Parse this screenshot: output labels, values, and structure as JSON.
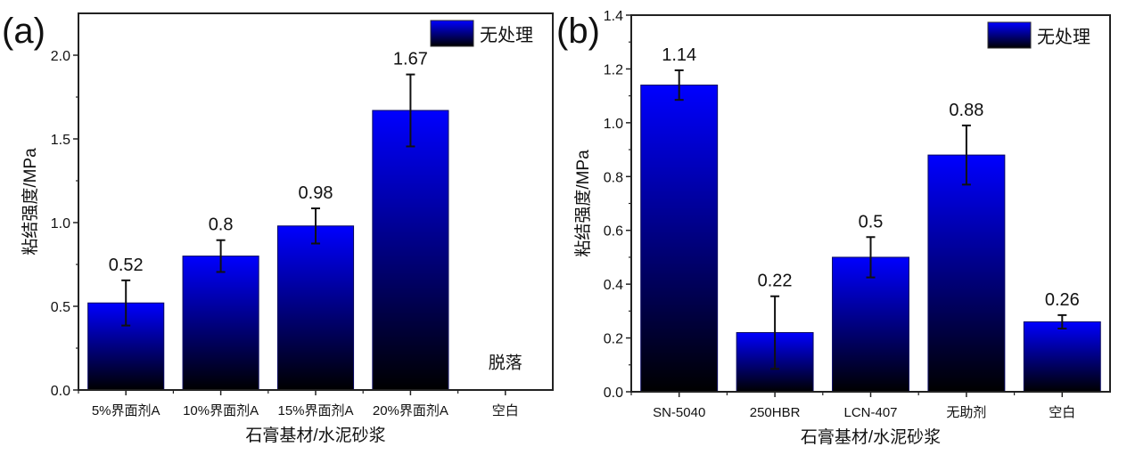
{
  "bar_gradient": {
    "top": "#0000ff",
    "bottom": "#000000"
  },
  "chart_data": [
    {
      "type": "bar",
      "panel_label": "(a)",
      "title": "",
      "xlabel": "石膏基材/水泥砂浆",
      "ylabel": "粘结强度/MPa",
      "ylim": [
        0,
        2.25
      ],
      "yticks": [
        0.0,
        0.5,
        1.0,
        1.5,
        2.0
      ],
      "ytick_labels": [
        "0.0",
        "0.5",
        "1.0",
        "1.5",
        "2.0"
      ],
      "categories": [
        "5%界面剂A",
        "10%界面剂A",
        "15%界面剂A",
        "20%界面剂A",
        "空白"
      ],
      "series": [
        {
          "name": "无处理",
          "values": [
            0.52,
            0.8,
            0.98,
            1.67,
            null
          ],
          "errors": [
            0.135,
            0.095,
            0.105,
            0.215,
            null
          ]
        }
      ],
      "data_labels": [
        "0.52",
        "0.8",
        "0.98",
        "1.67",
        null
      ],
      "annotation": "脱落",
      "legend": {
        "position": "top-right",
        "entries": [
          "无处理"
        ]
      }
    },
    {
      "type": "bar",
      "panel_label": "(b)",
      "title": "",
      "xlabel": "石膏基材/水泥砂浆",
      "ylabel": "粘结强度/MPa",
      "ylim": [
        0,
        1.4
      ],
      "yticks": [
        0.0,
        0.2,
        0.4,
        0.6,
        0.8,
        1.0,
        1.2,
        1.4
      ],
      "ytick_labels": [
        "0.0",
        "0.2",
        "0.4",
        "0.6",
        "0.8",
        "1.0",
        "1.2",
        "1.4"
      ],
      "categories": [
        "SN-5040",
        "250HBR",
        "LCN-407",
        "无助剂",
        "空白"
      ],
      "series": [
        {
          "name": "无处理",
          "values": [
            1.14,
            0.22,
            0.5,
            0.88,
            0.26
          ],
          "errors": [
            0.055,
            0.135,
            0.075,
            0.11,
            0.025
          ]
        }
      ],
      "data_labels": [
        "1.14",
        "0.22",
        "0.5",
        "0.88",
        "0.26"
      ],
      "annotation": null,
      "legend": {
        "position": "top-right",
        "entries": [
          "无处理"
        ]
      }
    }
  ]
}
